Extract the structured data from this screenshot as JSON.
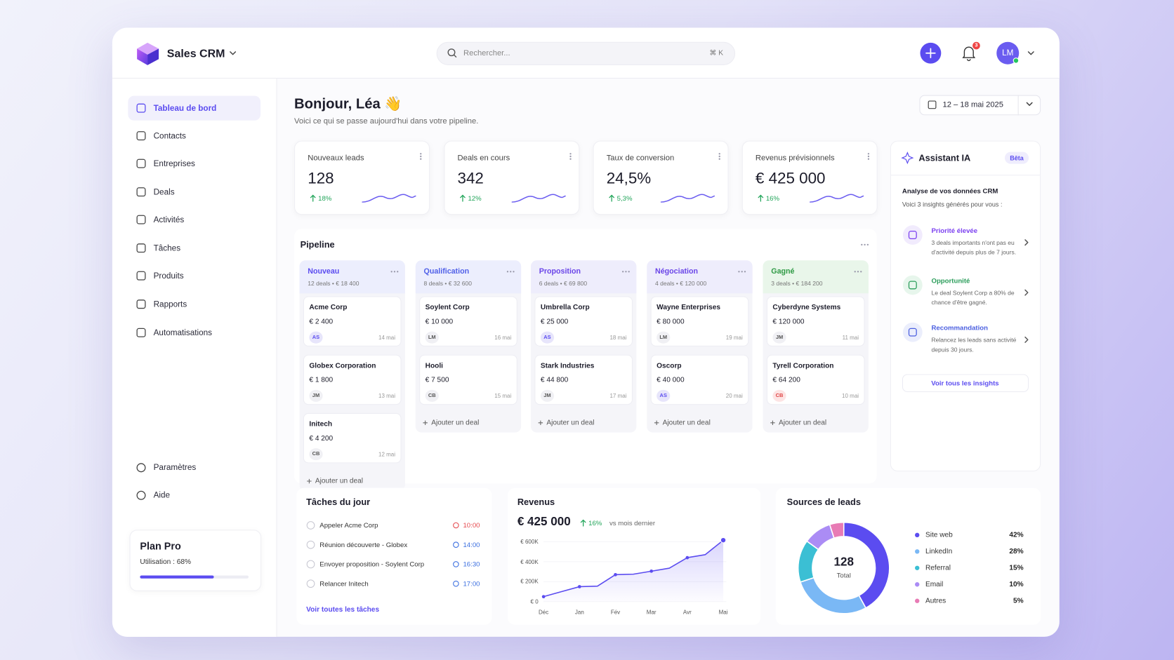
{
  "app": {
    "name": "Sales CRM"
  },
  "search": {
    "placeholder": "Rechercher...",
    "shortcut": "⌘ K"
  },
  "notifications": {
    "count": "3"
  },
  "user": {
    "initials": "LM"
  },
  "nav": [
    "Tableau de bord",
    "Contacts",
    "Entreprises",
    "Deals",
    "Activités",
    "Tâches",
    "Produits",
    "Rapports",
    "Automatisations"
  ],
  "nav_bottom": [
    "Paramètres",
    "Aide"
  ],
  "plan": {
    "title": "Plan Pro",
    "usage_label": "Utilisation : 68%",
    "usage": 68
  },
  "greeting": {
    "title": "Bonjour, Léa 👋",
    "subtitle": "Voici ce qui se passe aujourd'hui dans votre pipeline."
  },
  "date_range": "12 – 18 mai 2025",
  "kpis": [
    {
      "label": "Nouveaux leads",
      "value": "128",
      "change": "18%"
    },
    {
      "label": "Deals en cours",
      "value": "342",
      "change": "12%"
    },
    {
      "label": "Taux de conversion",
      "value": "24,5%",
      "change": "5,3%"
    },
    {
      "label": "Revenus prévisionnels",
      "value": "€ 425 000",
      "change": "16%"
    }
  ],
  "pipeline": {
    "title": "Pipeline",
    "add_deal": "Ajouter un deal",
    "columns": [
      {
        "name": "Nouveau",
        "summary": "12 deals • € 18 400",
        "deals": [
          {
            "company": "Acme Corp",
            "amount": "€ 2 400",
            "owner": "AS",
            "date": "14 mai"
          },
          {
            "company": "Globex Corporation",
            "amount": "€ 1 800",
            "owner": "JM",
            "date": "13 mai"
          },
          {
            "company": "Initech",
            "amount": "€ 4 200",
            "owner": "CB",
            "date": "12 mai"
          }
        ]
      },
      {
        "name": "Qualification",
        "summary": "8 deals • € 32 600",
        "deals": [
          {
            "company": "Soylent Corp",
            "amount": "€ 10 000",
            "owner": "LM",
            "date": "16 mai"
          },
          {
            "company": "Hooli",
            "amount": "€ 7 500",
            "owner": "CB",
            "date": "15 mai"
          }
        ]
      },
      {
        "name": "Proposition",
        "summary": "6 deals • € 69 800",
        "deals": [
          {
            "company": "Umbrella Corp",
            "amount": "€ 25 000",
            "owner": "AS",
            "date": "18 mai"
          },
          {
            "company": "Stark Industries",
            "amount": "€ 44 800",
            "owner": "JM",
            "date": "17 mai"
          }
        ]
      },
      {
        "name": "Négociation",
        "summary": "4 deals • € 120 000",
        "deals": [
          {
            "company": "Wayne Enterprises",
            "amount": "€ 80 000",
            "owner": "LM",
            "date": "19 mai"
          },
          {
            "company": "Oscorp",
            "amount": "€ 40 000",
            "owner": "AS",
            "date": "20 mai"
          }
        ]
      },
      {
        "name": "Gagné",
        "summary": "3 deals • € 184 200",
        "deals": [
          {
            "company": "Cyberdyne Systems",
            "amount": "€ 120 000",
            "owner": "JM",
            "date": "11 mai"
          },
          {
            "company": "Tyrell Corporation",
            "amount": "€ 64 200",
            "owner": "CB",
            "date": "10 mai"
          }
        ]
      }
    ]
  },
  "assistant": {
    "title": "Assistant IA",
    "badge": "Bêta",
    "heading": "Analyse de vos données CRM",
    "intro": "Voici 3 insights générés pour vous :",
    "insights": [
      {
        "title": "Priorité élevée",
        "text": "3 deals importants n'ont pas eu d'activité depuis plus de 7 jours."
      },
      {
        "title": "Opportunité",
        "text": "Le deal Soylent Corp a 80% de chance d'être gagné."
      },
      {
        "title": "Recommandation",
        "text": "Relancez les leads sans activité depuis 30 jours."
      }
    ],
    "link": "Voir tous les insights"
  },
  "tasks": {
    "title": "Tâches du jour",
    "items": [
      {
        "label": "Appeler Acme Corp",
        "time": "10:00"
      },
      {
        "label": "Réunion découverte - Globex",
        "time": "14:00"
      },
      {
        "label": "Envoyer proposition - Soylent Corp",
        "time": "16:30"
      },
      {
        "label": "Relancer Initech",
        "time": "17:00"
      }
    ],
    "link": "Voir toutes les tâches"
  },
  "revenue": {
    "title": "Revenus",
    "total": "€ 425 000",
    "change": "16%",
    "change_note": "vs mois dernier",
    "chart": {
      "type": "line",
      "x": [
        0,
        0.5,
        1,
        1.5,
        2,
        2.5,
        3,
        3.5,
        4,
        4.5,
        5
      ],
      "values": [
        50,
        100,
        150,
        155,
        270,
        275,
        305,
        335,
        440,
        470,
        615
      ],
      "color": "#5b4cf0",
      "xlim": [
        0,
        5
      ],
      "xticks": [
        {
          "value": 0,
          "label": "Déc"
        },
        {
          "value": 1,
          "label": "Jan"
        },
        {
          "value": 2,
          "label": "Fév"
        },
        {
          "value": 3,
          "label": "Mar"
        },
        {
          "value": 4,
          "label": "Avr"
        },
        {
          "value": 5,
          "label": "Mai"
        }
      ],
      "ylim": [
        0,
        620
      ],
      "yticks": [
        {
          "value": 0,
          "label": "€ 0"
        },
        {
          "value": 200,
          "label": "€ 200K"
        },
        {
          "value": 400,
          "label": "€ 400K"
        },
        {
          "value": 600,
          "label": "€ 600K"
        }
      ],
      "grid": true
    }
  },
  "sources": {
    "title": "Sources de leads",
    "total": "128",
    "total_label": "Total",
    "chart": {
      "type": "pie",
      "categories": [
        "Site web",
        "LinkedIn",
        "Referral",
        "Email",
        "Autres"
      ],
      "values": [
        42,
        28,
        15,
        10,
        5
      ],
      "value_labels": [
        "42%",
        "28%",
        "15%",
        "10%",
        "5%"
      ],
      "colors": [
        "#5b4cf0",
        "#7ab8f5",
        "#3bbfd4",
        "#ab8cf5",
        "#e87bb5"
      ]
    }
  }
}
